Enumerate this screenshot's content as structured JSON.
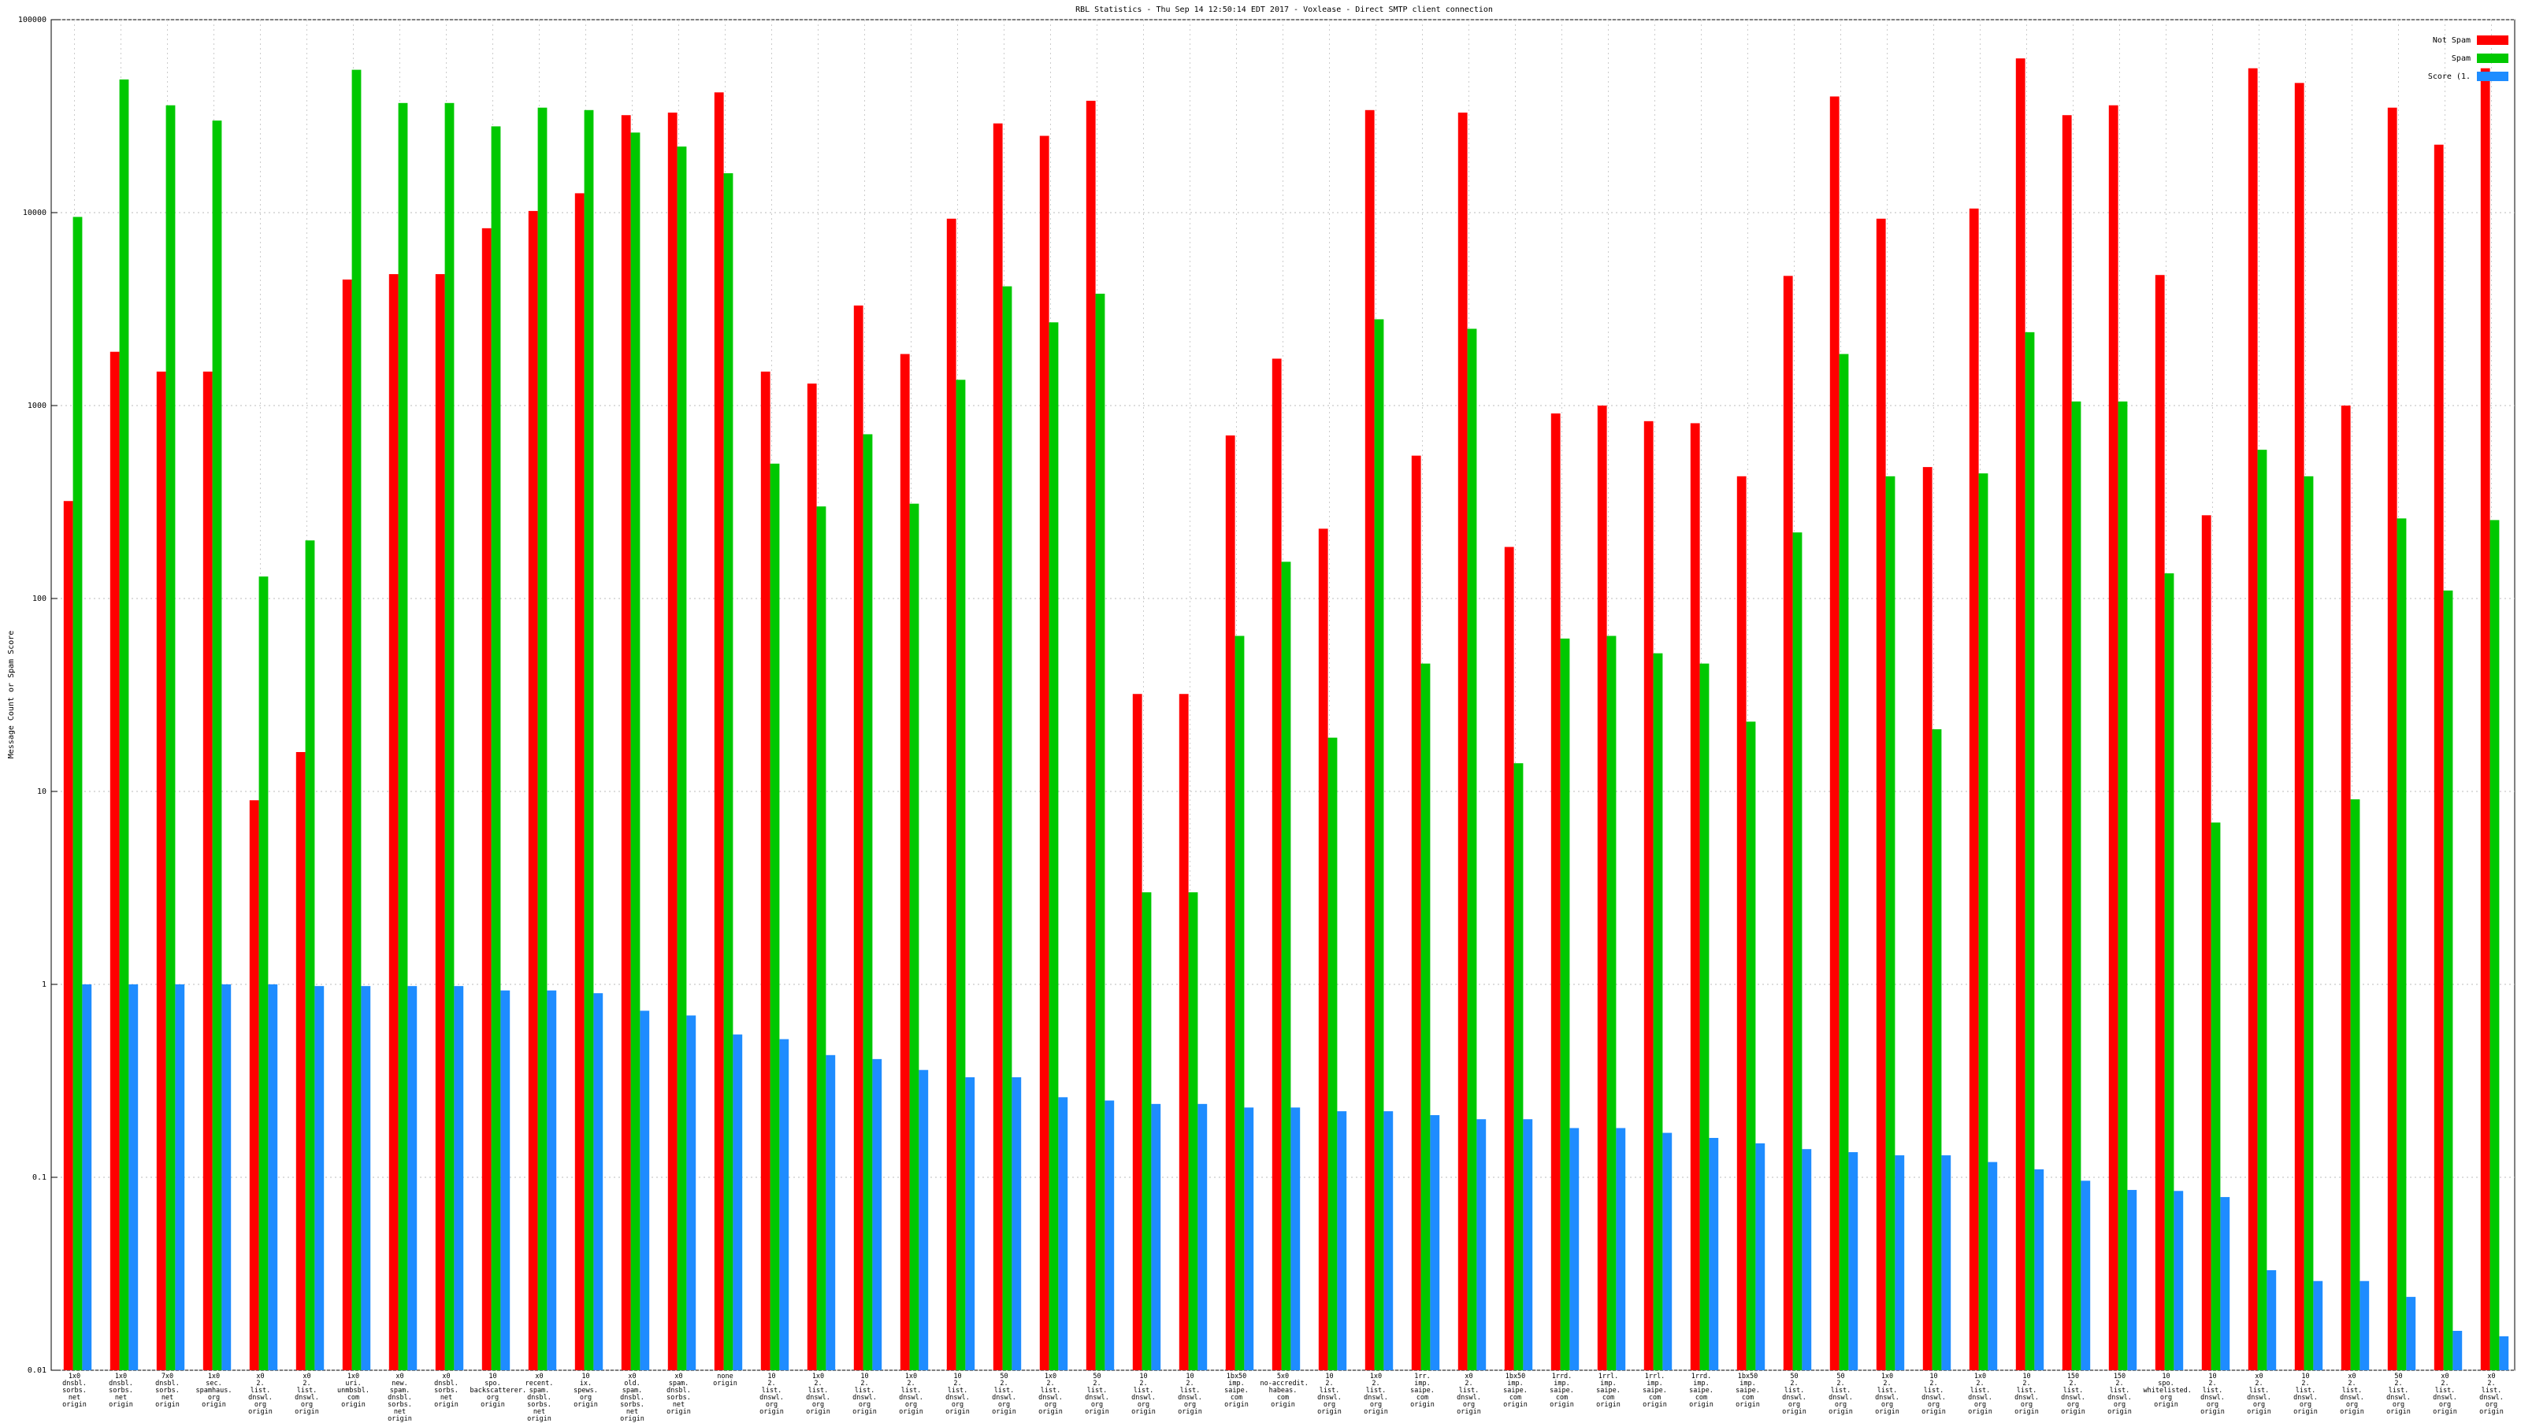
{
  "chart_data": {
    "type": "bar",
    "title": "RBL Statistics - Thu Sep 14 12:50:14 EDT 2017 - Voxlease - Direct SMTP client connection",
    "y_label": "Message Count or Spam Score",
    "log_scale": true,
    "grid": true,
    "legend": "top-right",
    "ylim": [
      0.01,
      100000
    ],
    "yticks": [
      0.01,
      0.1,
      1,
      10,
      100,
      1000,
      10000,
      100000
    ],
    "categories": [
      "1x0\ndnsbl.\nsorbs.\nnet\norigin",
      "1x0\ndnsbl.\nsorbs.\nnet\norigin",
      "7x0\ndnsbl.\nsorbs.\nnet\norigin",
      "1x0\nsec.\nspamhaus.\norg\norigin",
      "x0\n2.\nlist.\ndnswl.\norg\norigin",
      "x0\n2.\nlist.\ndnswl.\norg\norigin",
      "1x0\nuri.\nunmbsbl.\ncom\norigin",
      "x0\nnew.\nspam.\ndnsbl.\nsorbs.\nnet\norigin",
      "x0\ndnsbl.\nsorbs.\nnet\norigin",
      "10\nspo.\nbackscatterer.\norg\norigin",
      "x0\nrecent.\nspam.\ndnsbl.\nsorbs.\nnet\norigin",
      "10\nix.\nspews.\norg\norigin",
      "x0\nold.\nspam.\ndnsbl.\nsorbs.\nnet\norigin",
      "x0\nspam.\ndnsbl.\nsorbs.\nnet\norigin",
      "none\norigin",
      "10\n2.\nlist.\ndnswl.\norg\norigin",
      "1x0\n2.\nlist.\ndnswl.\norg\norigin",
      "10\n2.\nlist.\ndnswl.\norg\norigin",
      "1x0\n2.\nlist.\ndnswl.\norg\norigin",
      "10\n2.\nlist.\ndnswl.\norg\norigin",
      "50\n2.\nlist.\ndnswl.\norg\norigin",
      "1x0\n2.\nlist.\ndnswl.\norg\norigin",
      "50\n2.\nlist.\ndnswl.\norg\norigin",
      "10\n2.\nlist.\ndnswl.\norg\norigin",
      "10\n2.\nlist.\ndnswl.\norg\norigin",
      "1bx50\nimp.\nsaipe.\ncom\norigin",
      "5x0\nno-accredit.\nhabeas.\ncom\norigin",
      "10\n2.\nlist.\ndnswl.\norg\norigin",
      "1x0\n2.\nlist.\ndnswl.\norg\norigin",
      "1rr.\nimp.\nsaipe.\ncom\norigin",
      "x0\n2.\nlist.\ndnswl.\norg\norigin",
      "1bx50\nimp.\nsaipe.\ncom\norigin",
      "1rrd.\nimp.\nsaipe.\ncom\norigin",
      "1rrl.\nimp.\nsaipe.\ncom\norigin",
      "1rrl.\nimp.\nsaipe.\ncom\norigin",
      "1rrd.\nimp.\nsaipe.\ncom\norigin",
      "1bx50\nimp.\nsaipe.\ncom\norigin",
      "50\n2.\nlist.\ndnswl.\norg\norigin",
      "50\n2.\nlist.\ndnswl.\norg\norigin",
      "1x0\n2.\nlist.\ndnswl.\norg\norigin",
      "10\n2.\nlist.\ndnswl.\norg\norigin",
      "1x0\n2.\nlist.\ndnswl.\norg\norigin",
      "10\n2.\nlist.\ndnswl.\norg\norigin",
      "150\n2.\nlist.\ndnswl.\norg\norigin",
      "150\n2.\nlist.\ndnswl.\norg\norigin",
      "10\nspo.\nwhitelisted.\norg\norigin",
      "10\n2.\nlist.\ndnswl.\norg\norigin",
      "x0\n2.\nlist.\ndnswl.\norg\norigin",
      "10\n2.\nlist.\ndnswl.\norg\norigin",
      "x0\n2.\nlist.\ndnswl.\norg\norigin",
      "50\n2.\nlist.\ndnswl.\norg\norigin",
      "x0\n2.\nlist.\ndnswl.\norg\norigin",
      "x0\n2.\nlist.\ndnswl.\norg\norigin"
    ],
    "series": [
      {
        "name": "Not Spam",
        "color": "#ff0000",
        "values": [
          320,
          1900,
          1500,
          1500,
          9,
          16,
          4500,
          4800,
          4800,
          8300,
          10200,
          12600,
          32000,
          33000,
          42000,
          1500,
          1300,
          3300,
          1850,
          9300,
          29000,
          25000,
          38000,
          32,
          32,
          700,
          1750,
          230,
          34000,
          550,
          33000,
          185,
          910,
          1000,
          830,
          810,
          430,
          4700,
          40000,
          9300,
          480,
          10500,
          63000,
          32000,
          36000,
          4750,
          270,
          56000,
          47000,
          1000,
          35000,
          22500,
          56000
        ]
      },
      {
        "name": "Spam",
        "color": "#00c800",
        "values": [
          9500,
          49000,
          36000,
          30000,
          130,
          200,
          55000,
          37000,
          37000,
          28000,
          35000,
          34000,
          26000,
          22000,
          16000,
          500,
          300,
          710,
          310,
          1360,
          4150,
          2700,
          3800,
          3,
          3,
          64,
          155,
          19,
          2800,
          46,
          2500,
          14,
          62,
          64,
          52,
          46,
          23,
          220,
          1850,
          430,
          21,
          445,
          2400,
          1050,
          1050,
          135,
          6.9,
          590,
          430,
          9.1,
          260,
          110,
          255
        ]
      },
      {
        "name": "Score (1.",
        "color": "#1e8cff",
        "values": [
          1,
          1,
          1,
          1,
          1,
          0.98,
          0.98,
          0.98,
          0.98,
          0.93,
          0.93,
          0.9,
          0.73,
          0.69,
          0.55,
          0.52,
          0.43,
          0.41,
          0.36,
          0.33,
          0.33,
          0.26,
          0.25,
          0.24,
          0.24,
          0.23,
          0.23,
          0.22,
          0.22,
          0.21,
          0.2,
          0.2,
          0.18,
          0.18,
          0.17,
          0.16,
          0.15,
          0.14,
          0.135,
          0.13,
          0.13,
          0.12,
          0.11,
          0.096,
          0.086,
          0.085,
          0.079,
          0.033,
          0.029,
          0.029,
          0.024,
          0.016,
          0.015
        ]
      }
    ]
  }
}
